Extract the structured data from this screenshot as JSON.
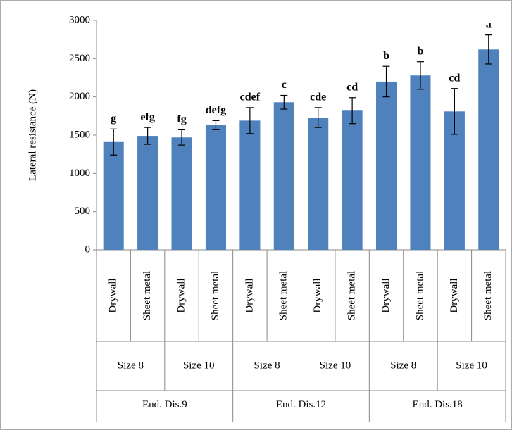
{
  "chart_data": {
    "type": "bar",
    "y_label": "Lateral resistance (N)",
    "categories": [
      "Drywall",
      "Sheet metal",
      "Drywall",
      "Sheet metal",
      "Drywall",
      "Sheet metal",
      "Drywall",
      "Sheet metal",
      "Drywall",
      "Sheet metal",
      "Drywall",
      "Sheet metal"
    ],
    "size_groups": [
      "Size 8",
      "Size 10",
      "Size 8",
      "Size 10",
      "Size 8",
      "Size 10"
    ],
    "distance_groups": [
      "End. Dis.9",
      "End. Dis.12",
      "End. Dis.18"
    ],
    "values": [
      1410,
      1490,
      1470,
      1630,
      1690,
      1930,
      1730,
      1820,
      2200,
      2280,
      1810,
      2620
    ],
    "errors": [
      170,
      110,
      100,
      60,
      170,
      90,
      130,
      170,
      200,
      180,
      300,
      190
    ],
    "annotations": [
      "g",
      "efg",
      "fg",
      "defg",
      "cdef",
      "c",
      "cde",
      "cd",
      "b",
      "b",
      "cd",
      "a"
    ],
    "color": "#4f81bd",
    "ylim": [
      0,
      3000
    ],
    "yticks": [
      0,
      500,
      1000,
      1500,
      2000,
      2500,
      3000
    ]
  }
}
